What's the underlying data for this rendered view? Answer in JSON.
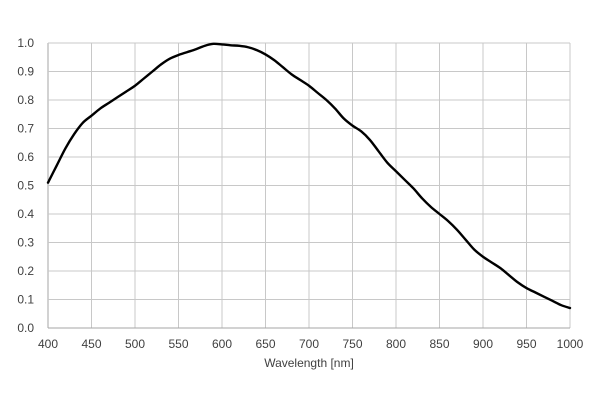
{
  "chart_data": {
    "type": "line",
    "xlabel": "Wavelength [nm]",
    "ylabel": "",
    "xlim": [
      400,
      1000
    ],
    "ylim": [
      0.0,
      1.0
    ],
    "grid": true,
    "legend": "none",
    "xticks": [
      "400",
      "450",
      "500",
      "550",
      "600",
      "650",
      "700",
      "750",
      "800",
      "850",
      "900",
      "950",
      "1000"
    ],
    "yticks": [
      "0.0",
      "0.1",
      "0.2",
      "0.3",
      "0.4",
      "0.5",
      "0.6",
      "0.7",
      "0.8",
      "0.9",
      "1.0"
    ],
    "series": [
      {
        "color": "#000000",
        "x": [
          400,
          410,
          420,
          430,
          440,
          450,
          460,
          470,
          480,
          490,
          500,
          510,
          520,
          530,
          540,
          550,
          560,
          570,
          580,
          590,
          600,
          610,
          620,
          630,
          640,
          650,
          660,
          670,
          680,
          690,
          700,
          710,
          720,
          730,
          740,
          750,
          760,
          770,
          780,
          790,
          800,
          810,
          820,
          830,
          840,
          850,
          860,
          870,
          880,
          890,
          900,
          910,
          920,
          930,
          940,
          950,
          960,
          970,
          980,
          990,
          1000
        ],
        "y": [
          0.51,
          0.57,
          0.63,
          0.68,
          0.72,
          0.745,
          0.77,
          0.79,
          0.81,
          0.83,
          0.85,
          0.875,
          0.9,
          0.925,
          0.945,
          0.958,
          0.968,
          0.978,
          0.99,
          0.997,
          0.995,
          0.992,
          0.99,
          0.985,
          0.975,
          0.96,
          0.94,
          0.915,
          0.89,
          0.87,
          0.85,
          0.825,
          0.8,
          0.77,
          0.735,
          0.71,
          0.69,
          0.66,
          0.62,
          0.58,
          0.55,
          0.52,
          0.49,
          0.455,
          0.425,
          0.4,
          0.375,
          0.345,
          0.31,
          0.275,
          0.25,
          0.23,
          0.21,
          0.185,
          0.16,
          0.14,
          0.125,
          0.11,
          0.095,
          0.08,
          0.07
        ]
      }
    ]
  }
}
